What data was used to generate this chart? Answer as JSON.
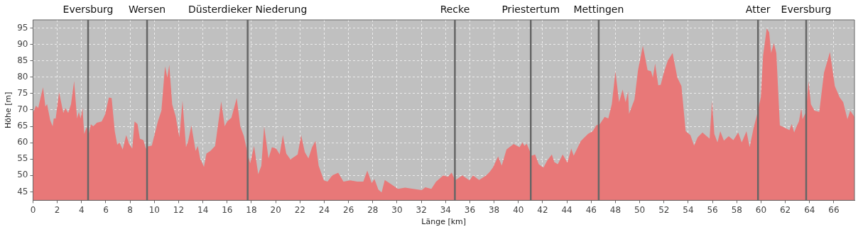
{
  "chart_data": {
    "type": "area",
    "xlabel": "Länge [km]",
    "ylabel": "Höhe [m]",
    "xlim": [
      0,
      67.7
    ],
    "ylim": [
      42.4,
      97.5
    ],
    "xticks": [
      0,
      2,
      4,
      6,
      8,
      10,
      12,
      14,
      16,
      18,
      20,
      22,
      24,
      26,
      28,
      30,
      32,
      34,
      36,
      38,
      40,
      42,
      44,
      46,
      48,
      50,
      52,
      54,
      56,
      58,
      60,
      62,
      64,
      66
    ],
    "yticks": [
      45,
      50,
      55,
      60,
      65,
      70,
      75,
      80,
      85,
      90,
      95
    ],
    "grid": true,
    "legend": false,
    "series": [
      {
        "color": "#e87878",
        "x": [
          0,
          0.24,
          0.43,
          0.63,
          0.83,
          1.02,
          1.16,
          1.42,
          1.62,
          1.71,
          1.87,
          2.15,
          2.5,
          2.66,
          2.9,
          3.13,
          3.39,
          3.63,
          3.78,
          3.92,
          4.08,
          4.22,
          4.43,
          4.61,
          4.77,
          4.97,
          5.26,
          5.66,
          5.95,
          6.25,
          6.48,
          6.74,
          6.94,
          7.13,
          7.39,
          7.68,
          7.92,
          8.18,
          8.37,
          8.61,
          8.81,
          9.1,
          9.3,
          9.5,
          9.79,
          10.29,
          10.58,
          10.88,
          11.07,
          11.23,
          11.47,
          11.76,
          12.06,
          12.32,
          12.61,
          12.79,
          13.05,
          13.4,
          13.58,
          13.77,
          14.09,
          14.29,
          14.62,
          15.01,
          15.51,
          15.8,
          16,
          16.35,
          16.79,
          17.08,
          17.38,
          17.73,
          17.9,
          18.22,
          18.56,
          18.82,
          19.05,
          19.41,
          19.69,
          20.04,
          20.33,
          20.59,
          20.87,
          21.22,
          21.81,
          22.1,
          22.4,
          22.7,
          23,
          23.28,
          23.54,
          23.97,
          24.27,
          24.66,
          25.15,
          25.59,
          26.14,
          26.73,
          27.22,
          27.55,
          27.91,
          28.14,
          28.46,
          28.73,
          28.99,
          29.48,
          30.07,
          30.66,
          31.35,
          32.04,
          32.33,
          32.83,
          33.22,
          33.81,
          34.2,
          34.5,
          34.79,
          35.38,
          35.97,
          36.26,
          36.76,
          37.35,
          37.64,
          37.9,
          38.33,
          38.63,
          39.02,
          39.61,
          40.1,
          40.34,
          40.5,
          40.69,
          41.09,
          41.38,
          41.68,
          42.07,
          42.37,
          42.76,
          42.96,
          43.25,
          43.65,
          44.04,
          44.36,
          44.56,
          45.15,
          45.74,
          46.13,
          46.42,
          46.72,
          47.11,
          47.41,
          47.7,
          48,
          48.3,
          48.59,
          48.84,
          49.04,
          49.12,
          49.57,
          49.86,
          50.26,
          50.65,
          50.94,
          51.08,
          51.27,
          51.53,
          51.73,
          52.02,
          52.32,
          52.71,
          53.1,
          53.44,
          53.79,
          54.18,
          54.48,
          54.77,
          55.17,
          55.76,
          55.96,
          56.15,
          56.41,
          56.64,
          56.94,
          57.33,
          57.72,
          58.12,
          58.41,
          58.8,
          59.06,
          59.39,
          59.68,
          59.98,
          60.17,
          60.47,
          60.67,
          60.83,
          61.06,
          61.26,
          61.55,
          61.95,
          62.34,
          62.53,
          62.73,
          62.93,
          63.12,
          63.32,
          63.42,
          63.71,
          63.91,
          64.11,
          64.41,
          64.8,
          65.19,
          65.68,
          66.08,
          66.47,
          66.77,
          67.12,
          67.35,
          67.7
        ],
        "values": [
          69.1,
          71.3,
          70.6,
          73.9,
          76.9,
          71,
          71.8,
          66.8,
          65,
          67.4,
          67.4,
          75.4,
          69.1,
          70.6,
          69.1,
          71.7,
          78.8,
          67.4,
          69.4,
          67.4,
          70.6,
          62.7,
          64.8,
          62.9,
          65.6,
          65,
          66.1,
          66.5,
          68.7,
          73.8,
          73.6,
          63.5,
          59.4,
          60.1,
          57.9,
          62.3,
          59.7,
          58.2,
          66.5,
          65.7,
          61.2,
          60.8,
          58.2,
          58.9,
          59.1,
          66.5,
          69.8,
          83.3,
          79.9,
          83.8,
          71.7,
          68,
          61.6,
          72.8,
          58.6,
          60.5,
          65.3,
          57.5,
          59,
          55.2,
          52.6,
          56.7,
          57.5,
          59,
          72.6,
          65,
          66.5,
          67.6,
          73.6,
          65,
          62,
          56,
          53.7,
          59,
          50.4,
          53,
          65,
          55.2,
          58.6,
          58.2,
          56.4,
          62.3,
          56.7,
          54.9,
          56.4,
          62.3,
          57.1,
          55.2,
          58.6,
          60.5,
          53,
          48.5,
          48.1,
          50,
          50.8,
          48.1,
          48.5,
          48.1,
          48.1,
          51.5,
          47.7,
          48.9,
          45.7,
          44.8,
          48.6,
          47.4,
          45.9,
          46.3,
          45.9,
          45.5,
          46.4,
          45.9,
          48.1,
          50,
          49.6,
          50.9,
          48.5,
          50,
          48.5,
          50,
          48.6,
          50,
          51.1,
          52.4,
          55.8,
          53,
          57.9,
          59.6,
          58.6,
          60.1,
          59,
          59.7,
          56,
          56.4,
          53.4,
          52.4,
          54.5,
          56.4,
          54.1,
          53.4,
          56.4,
          53.9,
          58.2,
          56,
          60.5,
          62.7,
          63.5,
          65.3,
          65.7,
          67.9,
          67.4,
          71.7,
          81.8,
          72.4,
          76.2,
          72.4,
          75.7,
          68.8,
          73.2,
          82.1,
          89.6,
          82.1,
          81.8,
          79.9,
          84.2,
          77.5,
          77.7,
          81.8,
          85.1,
          87.4,
          79.9,
          77.3,
          63.5,
          62.3,
          59.1,
          61.6,
          63.1,
          61.2,
          72.8,
          62.7,
          60.1,
          63.5,
          60.6,
          62,
          60.8,
          63.1,
          60.1,
          63.5,
          58.6,
          64.6,
          68.7,
          73.9,
          86.6,
          94.9,
          93.7,
          87.4,
          90.4,
          87.4,
          65.3,
          64.6,
          63.8,
          65.7,
          63.1,
          65,
          66.5,
          70.6,
          67.2,
          69.4,
          78.8,
          71.7,
          69.8,
          69.4,
          81.4,
          87.7,
          77.3,
          73.9,
          72.4,
          67.2,
          69.8,
          67.9
        ]
      }
    ],
    "ref_lines": [
      {
        "axis": "x",
        "value": 4.54,
        "label": "Eversburg",
        "color": "#666666"
      },
      {
        "axis": "x",
        "value": 9.4,
        "label": "Wersen",
        "color": "#666666"
      },
      {
        "axis": "x",
        "value": 17.69,
        "label": "Düsterdieker Niederung",
        "color": "#666666"
      },
      {
        "axis": "x",
        "value": 34.77,
        "label": "Recke",
        "color": "#666666"
      },
      {
        "axis": "x",
        "value": 41.02,
        "label": "Priestertum",
        "color": "#666666"
      },
      {
        "axis": "x",
        "value": 46.62,
        "label": "Mettingen",
        "color": "#666666"
      },
      {
        "axis": "x",
        "value": 59.75,
        "label": "Atter",
        "color": "#666666"
      },
      {
        "axis": "x",
        "value": 63.72,
        "label": "Eversburg",
        "color": "#666666"
      }
    ]
  }
}
